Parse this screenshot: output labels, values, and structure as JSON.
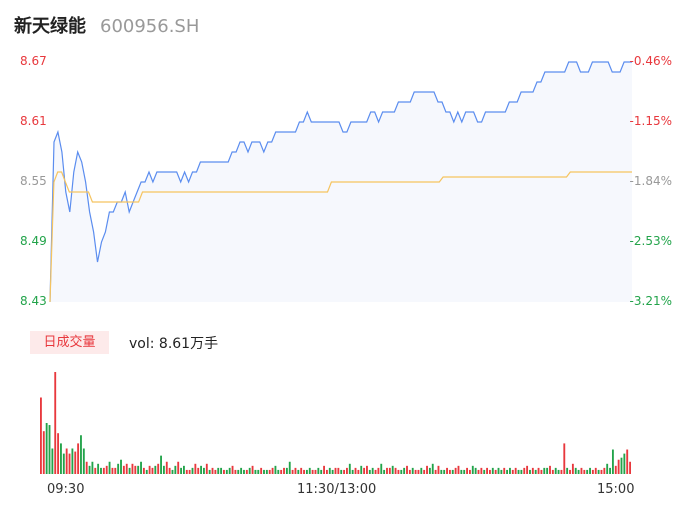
{
  "header": {
    "name": "新天绿能",
    "code": "600956.SH"
  },
  "colors": {
    "up": "#e8383d",
    "down": "#22a34a",
    "neutral": "#999999",
    "price_line": "#5b8def",
    "avg_line": "#f5c460",
    "fill": "#f6f8fd"
  },
  "chart_data": [
    {
      "type": "line",
      "y_ticks_price": [
        "8.67",
        "8.61",
        "8.55",
        "8.49",
        "8.43"
      ],
      "y_ticks_pct": [
        "-0.46%",
        "-1.15%",
        "-1.84%",
        "-2.53%",
        "-3.21%"
      ],
      "ylim": [
        8.43,
        8.67
      ],
      "x_ticks": [
        "09:30",
        "11:30/13:00",
        "15:00"
      ],
      "series": [
        {
          "values": [
            8.43,
            8.59,
            8.6,
            8.58,
            8.54,
            8.52,
            8.56,
            8.58,
            8.57,
            8.55,
            8.52,
            8.5,
            8.47,
            8.49,
            8.5,
            8.52,
            8.52,
            8.53,
            8.53,
            8.54,
            8.52,
            8.53,
            8.54,
            8.55,
            8.55,
            8.56,
            8.55,
            8.56,
            8.56,
            8.56,
            8.56,
            8.56,
            8.56,
            8.55,
            8.56,
            8.55,
            8.56,
            8.56,
            8.57,
            8.57,
            8.57,
            8.57,
            8.57,
            8.57,
            8.57,
            8.57,
            8.58,
            8.58,
            8.59,
            8.59,
            8.58,
            8.59,
            8.59,
            8.59,
            8.58,
            8.59,
            8.59,
            8.6,
            8.6,
            8.6,
            8.6,
            8.6,
            8.6,
            8.61,
            8.61,
            8.62,
            8.61,
            8.61,
            8.61,
            8.61,
            8.61,
            8.61,
            8.61,
            8.61,
            8.6,
            8.6,
            8.61,
            8.61,
            8.61,
            8.61,
            8.61,
            8.62,
            8.62,
            8.61,
            8.62,
            8.62,
            8.62,
            8.62,
            8.63,
            8.63,
            8.63,
            8.63,
            8.64,
            8.64,
            8.64,
            8.64,
            8.64,
            8.64,
            8.63,
            8.63,
            8.62,
            8.62,
            8.61,
            8.62,
            8.61,
            8.62,
            8.62,
            8.62,
            8.61,
            8.61,
            8.62,
            8.62,
            8.62,
            8.62,
            8.62,
            8.62,
            8.63,
            8.63,
            8.63,
            8.64,
            8.64,
            8.64,
            8.64,
            8.65,
            8.65,
            8.66,
            8.66,
            8.66,
            8.66,
            8.66,
            8.66,
            8.67,
            8.67,
            8.67,
            8.66,
            8.66,
            8.66,
            8.67,
            8.67,
            8.67,
            8.67,
            8.67,
            8.66,
            8.66,
            8.66,
            8.67,
            8.67,
            8.67
          ]
        },
        {
          "values": [
            8.43,
            8.55,
            8.56,
            8.56,
            8.55,
            8.54,
            8.54,
            8.54,
            8.54,
            8.54,
            8.54,
            8.53,
            8.53,
            8.53,
            8.53,
            8.53,
            8.53,
            8.53,
            8.53,
            8.53,
            8.53,
            8.53,
            8.53,
            8.53,
            8.54,
            8.54,
            8.54,
            8.54,
            8.54,
            8.54,
            8.54,
            8.54,
            8.54,
            8.54,
            8.54,
            8.54,
            8.54,
            8.54,
            8.54,
            8.54,
            8.54,
            8.54,
            8.54,
            8.54,
            8.54,
            8.54,
            8.54,
            8.54,
            8.54,
            8.54,
            8.54,
            8.54,
            8.54,
            8.54,
            8.54,
            8.54,
            8.54,
            8.54,
            8.54,
            8.54,
            8.54,
            8.54,
            8.54,
            8.54,
            8.54,
            8.54,
            8.54,
            8.54,
            8.54,
            8.54,
            8.54,
            8.54,
            8.54,
            8.55,
            8.55,
            8.55,
            8.55,
            8.55,
            8.55,
            8.55,
            8.55,
            8.55,
            8.55,
            8.55,
            8.55,
            8.55,
            8.55,
            8.55,
            8.55,
            8.55,
            8.55,
            8.55,
            8.55,
            8.55,
            8.55,
            8.55,
            8.55,
            8.55,
            8.55,
            8.55,
            8.55,
            8.55,
            8.555,
            8.555,
            8.555,
            8.555,
            8.555,
            8.555,
            8.555,
            8.555,
            8.555,
            8.555,
            8.555,
            8.555,
            8.555,
            8.555,
            8.555,
            8.555,
            8.555,
            8.555,
            8.555,
            8.555,
            8.555,
            8.555,
            8.555,
            8.555,
            8.555,
            8.555,
            8.555,
            8.555,
            8.555,
            8.555,
            8.555,
            8.555,
            8.555,
            8.56,
            8.56,
            8.56,
            8.56,
            8.56,
            8.56,
            8.56,
            8.56,
            8.56,
            8.56,
            8.56,
            8.56,
            8.56,
            8.56,
            8.56,
            8.56,
            8.56
          ]
        }
      ]
    },
    {
      "type": "bar",
      "tag": "日成交量",
      "vol_label": "vol: 8.61万手",
      "values": [
        75,
        42,
        50,
        48,
        25,
        100,
        40,
        30,
        20,
        25,
        20,
        25,
        22,
        30,
        38,
        25,
        12,
        8,
        12,
        6,
        10,
        6,
        6,
        8,
        12,
        6,
        6,
        10,
        14,
        8,
        10,
        6,
        10,
        8,
        8,
        12,
        6,
        4,
        8,
        6,
        8,
        10,
        18,
        8,
        12,
        6,
        4,
        8,
        12,
        6,
        8,
        4,
        4,
        6,
        10,
        6,
        8,
        6,
        10,
        4,
        6,
        4,
        6,
        6,
        4,
        4,
        6,
        8,
        4,
        4,
        6,
        4,
        4,
        6,
        8,
        4,
        4,
        6,
        4,
        4,
        4,
        6,
        8,
        4,
        4,
        6,
        6,
        12,
        4,
        6,
        4,
        6,
        4,
        4,
        6,
        4,
        4,
        6,
        4,
        8,
        4,
        6,
        4,
        6,
        6,
        4,
        4,
        6,
        10,
        4,
        6,
        4,
        8,
        6,
        8,
        4,
        6,
        4,
        6,
        10,
        4,
        6,
        6,
        8,
        6,
        4,
        4,
        6,
        8,
        4,
        6,
        4,
        4,
        6,
        4,
        8,
        6,
        10,
        4,
        8,
        4,
        4,
        6,
        4,
        4,
        6,
        8,
        4,
        4,
        6,
        4,
        8,
        6,
        4,
        6,
        4,
        6,
        4,
        6,
        4,
        6,
        4,
        6,
        4,
        6,
        4,
        6,
        4,
        4,
        6,
        8,
        4,
        6,
        4,
        6,
        4,
        6,
        6,
        8,
        4,
        6,
        4,
        4,
        30,
        6,
        4,
        10,
        6,
        4,
        6,
        4,
        4,
        6,
        4,
        6,
        4,
        4,
        6,
        10,
        6,
        24,
        8,
        14,
        16,
        20,
        24,
        12
      ],
      "directions": "uuddduudduuduudduddudduuduudduuduudduduududduuddudduuduudduduuddudduudddududdudduudduudduuduudduudduudduuduudduuduudduudduuduudduuduuduudduudduuduudduudduuduududdudduudduududuudduudduuduudduudduud"
    }
  ]
}
